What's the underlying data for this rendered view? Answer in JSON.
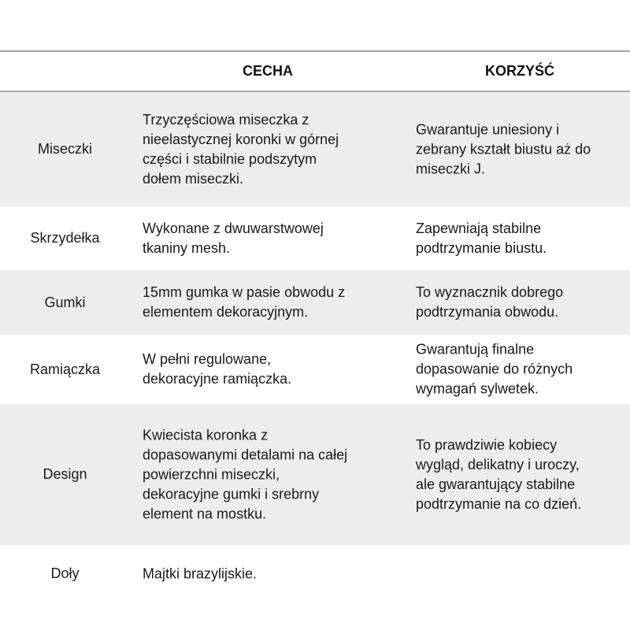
{
  "table": {
    "headers": [
      "",
      "CECHA",
      "KORZYŚĆ"
    ],
    "rows": [
      {
        "label": "Miseczki",
        "feature": "Trzyczęściowa miseczka z\nnieelastycznej koronki w górnej\nczęści i stabilnie podszytym\ndołem miseczki.",
        "benefit": "Gwarantuje uniesiony i\nzebrany kształt biustu aż do\nmiseczki J.",
        "shade": "gray"
      },
      {
        "label": "Skrzydełka",
        "feature": "Wykonane z dwuwarstwowej\ntkaniny mesh.",
        "benefit": "Zapewniają stabilne\npodtrzymanie biustu.",
        "shade": "white"
      },
      {
        "label": "Gumki",
        "feature": "15mm gumka w pasie obwodu z\nelementem dekoracyjnym.",
        "benefit": "To wyznacznik dobrego\npodtrzymania obwodu.",
        "shade": "gray"
      },
      {
        "label": "Ramiączka",
        "feature": "W pełni regulowane,\ndekoracyjne ramiączka.",
        "benefit": "Gwarantują finalne\ndopasowanie do różnych\nwymagań sylwetek.",
        "shade": "white"
      },
      {
        "label": "Design",
        "feature": "Kwiecista koronka z\ndopasowanymi detalami na całej\npowierzchni miseczki,\ndekoracyjne gumki i srebrny\nelement na mostku.",
        "benefit": "To prawdziwie kobiecy\nwygląd, delikatny i uroczy,\nale gwarantujący stabilne\npodtrzymanie na co dzień.",
        "shade": "gray"
      },
      {
        "label": "Doły",
        "feature": "Majtki brazylijskie.",
        "benefit": "",
        "shade": "white"
      }
    ]
  },
  "colors": {
    "row_shade": "#ededed",
    "rule": "#a8a8a8"
  }
}
